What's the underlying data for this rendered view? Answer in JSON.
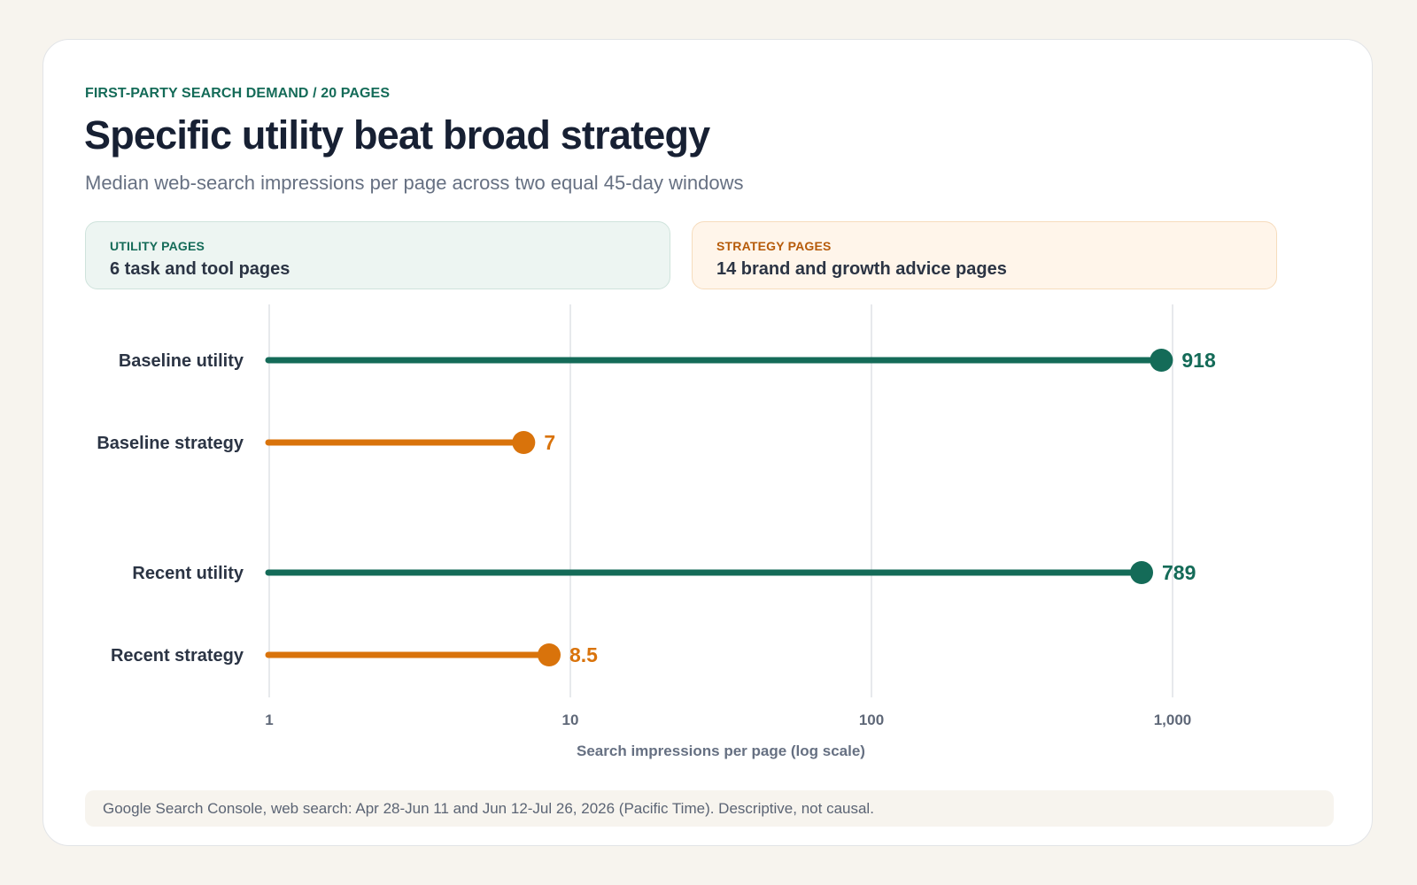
{
  "header": {
    "eyebrow": "FIRST-PARTY SEARCH DEMAND / 20 PAGES",
    "title": "Specific utility beat broad strategy",
    "subtitle": "Median web-search impressions per page across two equal 45-day windows"
  },
  "groups": {
    "utility": {
      "label": "UTILITY PAGES",
      "description": "6 task and tool pages",
      "color": "#146b58"
    },
    "strategy": {
      "label": "STRATEGY PAGES",
      "description": "14 brand and growth advice pages",
      "color": "#d9730b"
    }
  },
  "chart_data": {
    "type": "lollipop",
    "x_scale": "log",
    "xlim": [
      1,
      1000
    ],
    "xticks": [
      1,
      10,
      100,
      1000
    ],
    "xtick_labels": [
      "1",
      "10",
      "100",
      "1,000"
    ],
    "xlabel": "Search impressions per page (log scale)",
    "grid": true,
    "rows": [
      {
        "label": "Baseline utility",
        "value": 918,
        "value_label": "918",
        "group": "utility"
      },
      {
        "label": "Baseline strategy",
        "value": 7,
        "value_label": "7",
        "group": "strategy"
      },
      {
        "label": "Recent utility",
        "value": 789,
        "value_label": "789",
        "group": "utility"
      },
      {
        "label": "Recent strategy",
        "value": 8.5,
        "value_label": "8.5",
        "group": "strategy"
      }
    ]
  },
  "footer": {
    "source": "Google Search Console, web search: Apr 28-Jun 11 and Jun 12-Jul 26, 2026 (Pacific Time). Descriptive, not causal."
  }
}
